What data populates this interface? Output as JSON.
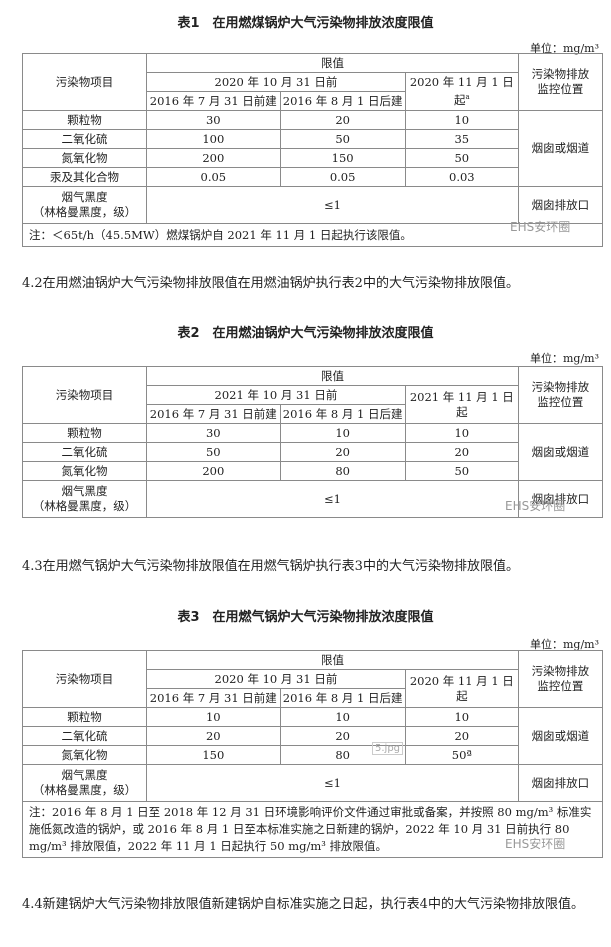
{
  "tables": [
    {
      "title": "表1　在用燃煤锅炉大气污染物排放浓度限值",
      "unit": "单位：mg/m³",
      "h_item": "污染物项目",
      "h_limit": "限值",
      "h_before": "2020 年 10 月 31 日前",
      "h_after": "2020 年 11 月 1 日起",
      "h_after_mark": "a",
      "h_old": "2016 年 7 月 31 日前建",
      "h_new": "2016 年 8 月 1 日后建",
      "h_loc": "污染物排放监控位置",
      "rows": [
        [
          "颗粒物",
          "30",
          "20",
          "10"
        ],
        [
          "二氧化硫",
          "100",
          "50",
          "35"
        ],
        [
          "氮氧化物",
          "200",
          "150",
          "50"
        ],
        [
          "汞及其化合物",
          "0.05",
          "0.05",
          "0.03"
        ]
      ],
      "loc1": "烟囱或烟道",
      "smoke": "烟气黑度",
      "smoke_sub": "（林格曼黑度，级）",
      "smoke_val": "≤1",
      "loc2": "烟囱排放口",
      "note": "注：＜65t/h（45.5MW）燃煤锅炉自 2021 年 11 月 1 日起执行该限值。"
    },
    {
      "title": "表2　在用燃油锅炉大气污染物排放浓度限值",
      "unit": "单位：mg/m³",
      "h_item": "污染物项目",
      "h_limit": "限值",
      "h_before": "2021 年 10 月 31 日前",
      "h_after": "2021 年 11 月 1 日起",
      "h_old": "2016 年 7 月 31 日前建",
      "h_new": "2016 年 8 月 1 日后建",
      "h_loc": "污染物排放监控位置",
      "rows": [
        [
          "颗粒物",
          "30",
          "10",
          "10"
        ],
        [
          "二氧化硫",
          "50",
          "20",
          "20"
        ],
        [
          "氮氧化物",
          "200",
          "80",
          "50"
        ]
      ],
      "loc1": "烟囱或烟道",
      "smoke": "烟气黑度",
      "smoke_sub": "（林格曼黑度，级）",
      "smoke_val": "≤1",
      "loc2": "烟囱排放口"
    },
    {
      "title": "表3　在用燃气锅炉大气污染物排放浓度限值",
      "unit": "单位：mg/m³",
      "h_item": "污染物项目",
      "h_limit": "限值",
      "h_before": "2020 年 10 月 31 日前",
      "h_after": "2020 年 11 月 1 日起",
      "h_old": "2016 年 7 月 31 日前建",
      "h_new": "2016 年 8 月 1 日后建",
      "h_loc": "污染物排放监控位置",
      "rows": [
        [
          "颗粒物",
          "10",
          "10",
          "10"
        ],
        [
          "二氧化硫",
          "20",
          "20",
          "20"
        ],
        [
          "氮氧化物",
          "150",
          "80",
          "50ª"
        ]
      ],
      "loc1": "烟囱或烟道",
      "smoke": "烟气黑度",
      "smoke_sub": "（林格曼黑度，级）",
      "smoke_val": "≤1",
      "loc2": "烟囱排放口",
      "note": "注：2016 年 8 月 1 日至 2018 年 12 月 31 日环境影响评价文件通过审批或备案，并按照 80 mg/m³ 标准实施低氮改造的锅炉，或 2016 年 8 月 1 日至本标准实施之日新建的锅炉，2022 年 10 月 31 日前执行 80 mg/m³ 排放限值，2022 年 11 月 1 日起执行 50 mg/m³ 排放限值。"
    }
  ],
  "paras": [
    "4.2在用燃油锅炉大气污染物排放限值在用燃油锅炉执行表2中的大气污染物排放限值。",
    "4.3在用燃气锅炉大气污染物排放限值在用燃气锅炉执行表3中的大气污染物排放限值。",
    "4.4新建锅炉大气污染物排放限值新建锅炉自标准实施之日起，执行表4中的大气污染物排放限值。"
  ],
  "watermark": "EHS安环圈",
  "image_label": "5.jpg"
}
